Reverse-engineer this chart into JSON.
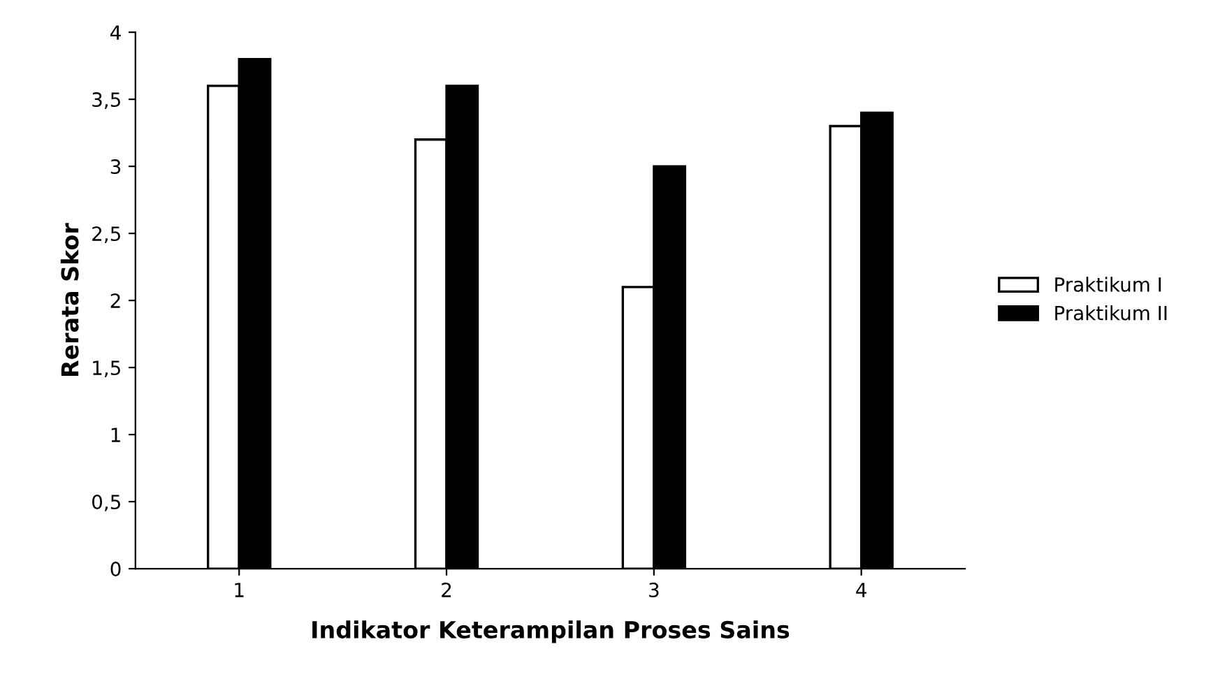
{
  "chart_data": {
    "type": "bar",
    "xlabel": "Indikator Keterampilan Proses Sains",
    "ylabel": "Rerata Skor",
    "categories": [
      "1",
      "2",
      "3",
      "4"
    ],
    "series": [
      {
        "name": "Praktikum I",
        "color": "#ffffff",
        "values": [
          3.6,
          3.2,
          2.1,
          3.3
        ]
      },
      {
        "name": "Praktikum II",
        "color": "#000000",
        "values": [
          3.8,
          3.6,
          3.0,
          3.4
        ]
      }
    ],
    "ylim": [
      0,
      4
    ],
    "yticks": [
      0,
      {
        "value": 0.5,
        "label": "0,5"
      },
      1,
      {
        "value": 1.5,
        "label": "1,5"
      },
      2,
      {
        "value": 2.5,
        "label": "2,5"
      },
      3,
      {
        "value": 3.5,
        "label": "3,5"
      },
      4
    ],
    "grid": false,
    "legend": "right"
  }
}
